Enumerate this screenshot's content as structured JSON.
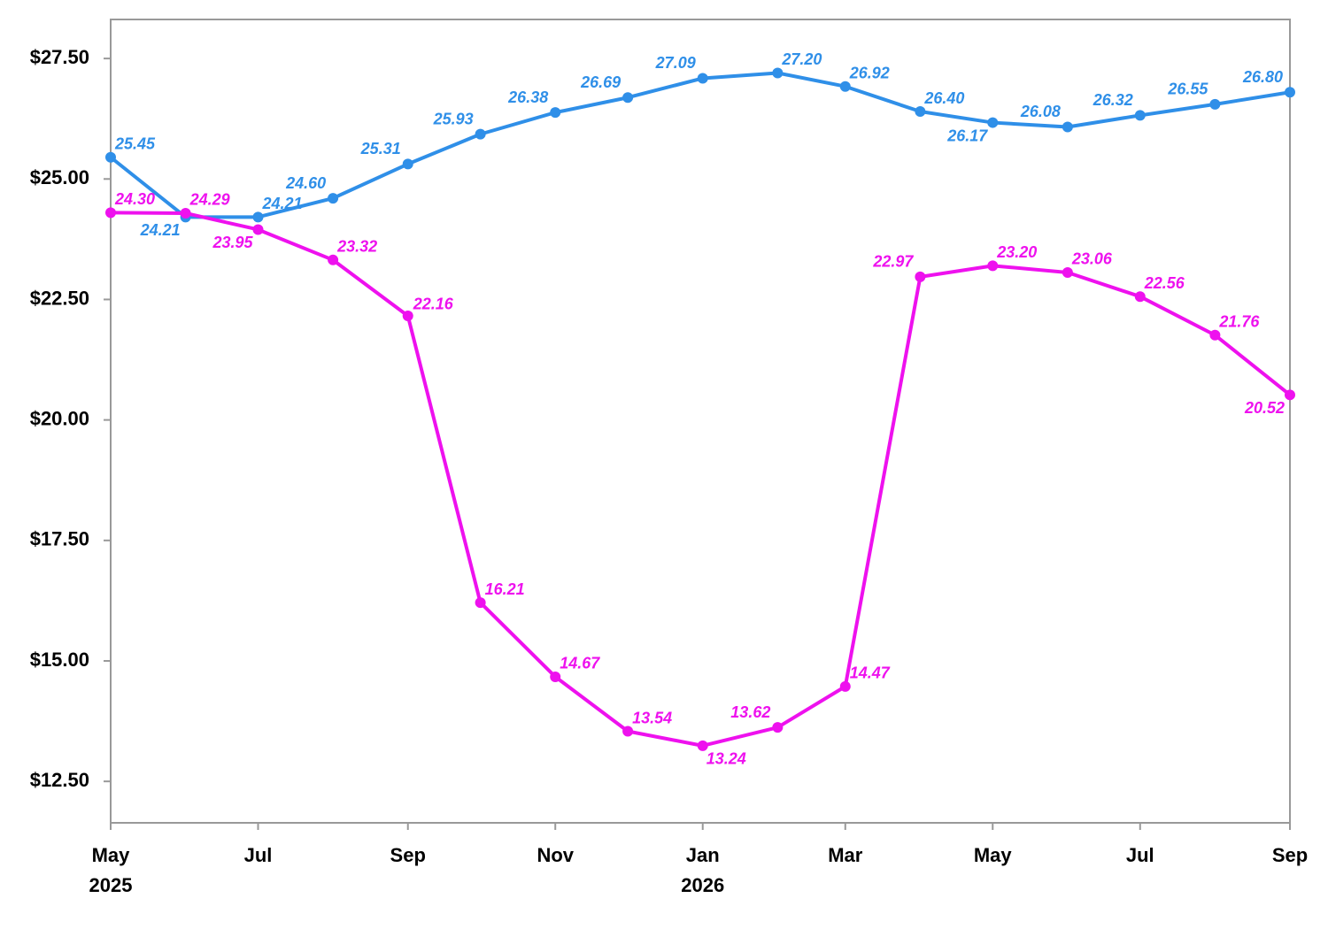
{
  "chart_data": {
    "type": "line",
    "x": [
      "2025-05",
      "2025-06",
      "2025-07",
      "2025-08",
      "2025-09",
      "2025-10",
      "2025-11",
      "2025-12",
      "2026-01",
      "2026-02",
      "2026-03",
      "2026-04",
      "2026-05",
      "2026-06",
      "2026-07",
      "2026-08",
      "2026-09"
    ],
    "series": [
      {
        "color": "#2f8fe8",
        "values": [
          25.45,
          24.21,
          24.21,
          24.6,
          25.31,
          25.93,
          26.38,
          26.69,
          27.09,
          27.2,
          26.92,
          26.4,
          26.17,
          26.08,
          26.32,
          26.55,
          26.8
        ],
        "value_labels": [
          "25.45",
          "24.21",
          "24.21",
          "24.60",
          "25.31",
          "25.93",
          "26.38",
          "26.69",
          "27.09",
          "27.20",
          "26.92",
          "26.40",
          "26.17",
          "26.08",
          "26.32",
          "26.55",
          "26.80"
        ]
      },
      {
        "color": "#ee11ee",
        "values": [
          24.3,
          24.29,
          23.95,
          23.32,
          22.16,
          16.21,
          14.67,
          13.54,
          13.24,
          13.62,
          14.47,
          22.97,
          23.2,
          23.06,
          22.56,
          21.76,
          20.52
        ],
        "value_labels": [
          "24.30",
          "24.29",
          "23.95",
          "23.32",
          "22.16",
          "16.21",
          "14.67",
          "13.54",
          "13.24",
          "13.62",
          "14.47",
          "22.97",
          "23.20",
          "23.06",
          "22.56",
          "21.76",
          "20.52"
        ]
      }
    ],
    "xlim": [
      "2025-05",
      "2026-09"
    ],
    "xticks": [
      {
        "value": "2025-05",
        "label": "May"
      },
      {
        "value": "2025-07",
        "label": "Jul"
      },
      {
        "value": "2025-09",
        "label": "Sep"
      },
      {
        "value": "2025-11",
        "label": "Nov"
      },
      {
        "value": "2026-01",
        "label": "Jan"
      },
      {
        "value": "2026-03",
        "label": "Mar"
      },
      {
        "value": "2026-05",
        "label": "May"
      },
      {
        "value": "2026-07",
        "label": "Jul"
      },
      {
        "value": "2026-09",
        "label": "Sep"
      }
    ],
    "xtick_years": [
      {
        "value": "2025-05",
        "label": "2025"
      },
      {
        "value": "2026-01",
        "label": "2026"
      }
    ],
    "ylim": [
      11.64,
      28.31
    ],
    "yticks": [
      {
        "value": 12.5,
        "label": "$12.50"
      },
      {
        "value": 15,
        "label": "$15.00"
      },
      {
        "value": 17.5,
        "label": "$17.50"
      },
      {
        "value": 20,
        "label": "$20.00"
      },
      {
        "value": 22.5,
        "label": "$22.50"
      },
      {
        "value": 25,
        "label": "$25.00"
      },
      {
        "value": 27.5,
        "label": "$27.50"
      }
    ]
  }
}
